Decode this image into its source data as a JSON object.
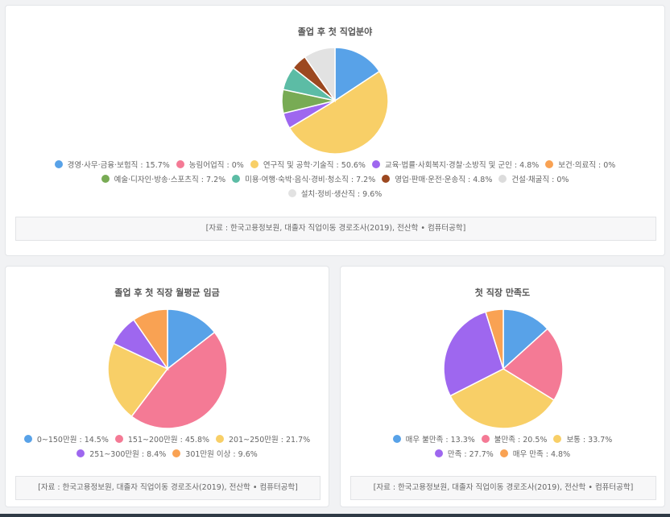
{
  "charts": [
    {
      "title": "졸업 후 첫 직업분야",
      "source": "[자료 : 한국고용정보원, 대졸자 직업이동 경로조사(2019), 전산학 • 컴퓨터공학]",
      "legend_rows": [
        [
          "경영·사무·금융·보험직 : 15.7%",
          "농림어업직 : 0%",
          "연구직 및 공학·기술직 : 50.6%",
          "교육·법률·사회복지·경찰·소방직 및 군인 : 4.8%",
          "보건·의료직 : 0%"
        ],
        [
          "예술·디자인·방송·스포츠직 : 7.2%",
          "미용·여행·숙박·음식·경비·청소직 : 7.2%",
          "영업·판매·운전·운송직 : 4.8%",
          "건설·채굴직 : 0%"
        ],
        [
          "설치·정비·생산직 : 9.6%"
        ]
      ]
    },
    {
      "title": "졸업 후 첫 직장 월평균 임금",
      "source": "[자료 : 한국고용정보원, 대졸자 직업이동 경로조사(2019), 전산학 • 컴퓨터공학]",
      "legend_rows": [
        [
          "0~150만원 : 14.5%",
          "151~200만원 : 45.8%",
          "201~250만원 : 21.7%"
        ],
        [
          "251~300만원 : 8.4%",
          "301만원 이상 : 9.6%"
        ]
      ]
    },
    {
      "title": "첫 직장 만족도",
      "source": "[자료 : 한국고용정보원, 대졸자 직업이동 경로조사(2019), 전산학 • 컴퓨터공학]",
      "legend_rows": [
        [
          "매우 불만족 : 13.3%",
          "불만족 : 20.5%",
          "보통 : 33.7%"
        ],
        [
          "만족 : 27.7%",
          "매우 만족 : 4.8%"
        ]
      ]
    }
  ],
  "chart_data": [
    {
      "type": "pie",
      "title": "졸업 후 첫 직업분야",
      "categories": [
        "경영·사무·금융·보험직",
        "농림어업직",
        "연구직 및 공학·기술직",
        "교육·법률·사회복지·경찰·소방직 및 군인",
        "보건·의료직",
        "예술·디자인·방송·스포츠직",
        "미용·여행·숙박·음식·경비·청소직",
        "영업·판매·운전·운송직",
        "건설·채굴직",
        "설치·정비·생산직"
      ],
      "values": [
        15.7,
        0,
        50.6,
        4.8,
        0,
        7.2,
        7.2,
        4.8,
        0,
        9.6
      ],
      "colors": [
        "#58a2e8",
        "#f47a95",
        "#f8cf67",
        "#9e67ef",
        "#f9a253",
        "#78ab54",
        "#5cbca5",
        "#9c4820",
        "#dcdcdc",
        "#e2e2e2"
      ],
      "legend": "bottom"
    },
    {
      "type": "pie",
      "title": "졸업 후 첫 직장 월평균 임금",
      "categories": [
        "0~150만원",
        "151~200만원",
        "201~250만원",
        "251~300만원",
        "301만원 이상"
      ],
      "values": [
        14.5,
        45.8,
        21.7,
        8.4,
        9.6
      ],
      "colors": [
        "#58a2e8",
        "#f47a95",
        "#f8cf67",
        "#9e67ef",
        "#f9a253"
      ],
      "legend": "bottom"
    },
    {
      "type": "pie",
      "title": "첫 직장 만족도",
      "categories": [
        "매우 불만족",
        "불만족",
        "보통",
        "만족",
        "매우 만족"
      ],
      "values": [
        13.3,
        20.5,
        33.7,
        27.7,
        4.8
      ],
      "colors": [
        "#58a2e8",
        "#f47a95",
        "#f8cf67",
        "#9e67ef",
        "#f9a253"
      ],
      "legend": "bottom"
    }
  ]
}
